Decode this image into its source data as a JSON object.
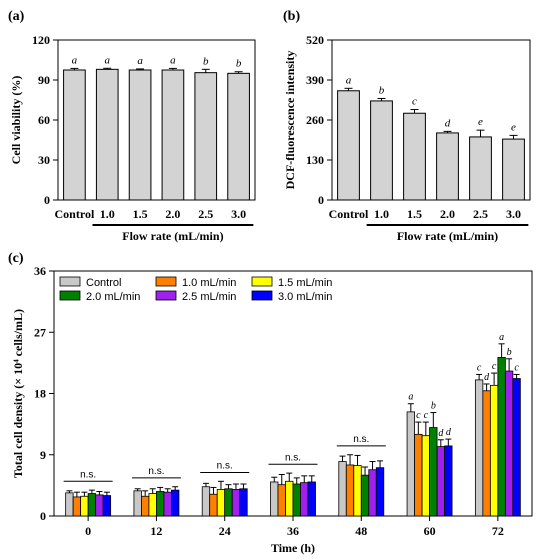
{
  "chart_data": [
    {
      "type": "bar",
      "panel_label": "(a)",
      "ylabel": "Cell viability (%)",
      "xlabel": "Flow rate (mL/min)",
      "categories": [
        "Control",
        "1.0",
        "1.5",
        "2.0",
        "2.5",
        "3.0"
      ],
      "values": [
        97.5,
        98,
        97.5,
        97.5,
        95.5,
        95
      ],
      "errors": [
        1.2,
        0.8,
        0.8,
        1.2,
        2.5,
        1.2
      ],
      "letters": [
        "a",
        "a",
        "a",
        "a",
        "b",
        "b"
      ],
      "ylim": [
        0,
        120
      ],
      "yticks": [
        "0",
        "30",
        "60",
        "90",
        "120"
      ],
      "bar_color": "#d3d3d3"
    },
    {
      "type": "bar",
      "panel_label": "(b)",
      "ylabel": "DCF-fluorescence intensity",
      "xlabel": "Flow rate (mL/min)",
      "categories": [
        "Control",
        "1.0",
        "1.5",
        "2.0",
        "2.5",
        "3.0"
      ],
      "values": [
        355,
        322,
        282,
        218,
        205,
        198
      ],
      "errors": [
        8,
        8,
        12,
        5,
        22,
        12
      ],
      "letters": [
        "a",
        "b",
        "c",
        "d",
        "e",
        "e"
      ],
      "ylim": [
        0,
        520
      ],
      "yticks": [
        "0",
        "130",
        "260",
        "390",
        "520"
      ],
      "bar_color": "#d3d3d3"
    },
    {
      "type": "bar",
      "panel_label": "(c)",
      "ylabel": "Total cell density (× 10⁴ cells/mL)",
      "xlabel": "Time (h)",
      "categories": [
        "0",
        "12",
        "24",
        "36",
        "48",
        "60",
        "72"
      ],
      "ylim": [
        0,
        36
      ],
      "yticks": [
        "0",
        "9",
        "18",
        "27",
        "36"
      ],
      "legend_position": "top-left",
      "series": [
        {
          "name": "Control",
          "color": "#c8c8c8",
          "values": [
            3.4,
            3.7,
            4.3,
            5.0,
            8.0,
            15.3,
            20.0
          ],
          "errors": [
            0.3,
            0.3,
            0.5,
            0.7,
            0.8,
            1.2,
            0.8
          ]
        },
        {
          "name": "1.0 mL/min",
          "color": "#ff8000",
          "values": [
            2.8,
            2.9,
            3.2,
            4.6,
            7.5,
            12.0,
            18.4
          ],
          "errors": [
            0.7,
            0.8,
            1.0,
            1.5,
            1.5,
            1.8,
            1.0
          ]
        },
        {
          "name": "1.5 mL/min",
          "color": "#ffff00",
          "values": [
            2.9,
            3.3,
            3.9,
            5.1,
            7.4,
            11.8,
            19.2
          ],
          "errors": [
            0.6,
            0.7,
            1.2,
            1.2,
            1.5,
            2.0,
            1.8
          ]
        },
        {
          "name": "2.0 mL/min",
          "color": "#008000",
          "values": [
            3.3,
            3.6,
            4.0,
            4.7,
            6.0,
            13.0,
            23.3
          ],
          "errors": [
            0.5,
            0.6,
            0.6,
            0.9,
            1.2,
            2.2,
            2.0
          ]
        },
        {
          "name": "2.5 mL/min",
          "color": "#a020f0",
          "values": [
            3.1,
            3.5,
            3.9,
            4.9,
            6.8,
            10.2,
            21.3
          ],
          "errors": [
            0.5,
            0.5,
            0.8,
            1.0,
            1.2,
            1.0,
            1.8
          ]
        },
        {
          "name": "3.0 mL/min",
          "color": "#0000ff",
          "values": [
            3.0,
            3.8,
            4.0,
            5.0,
            7.1,
            10.3,
            20.2
          ],
          "errors": [
            0.5,
            0.5,
            0.7,
            0.9,
            1.0,
            1.0,
            0.6
          ]
        }
      ],
      "group_annotations": [
        {
          "group": 0,
          "text": "n.s."
        },
        {
          "group": 1,
          "text": "n.s."
        },
        {
          "group": 2,
          "text": "n.s."
        },
        {
          "group": 3,
          "text": "n.s."
        },
        {
          "group": 4,
          "text": "n.s."
        }
      ],
      "bar_letters": [
        {
          "group": 5,
          "letters": [
            "a",
            "c",
            "c",
            "b",
            "d",
            "d"
          ]
        },
        {
          "group": 6,
          "letters": [
            "c",
            "d",
            "c",
            "a",
            "b",
            "c"
          ]
        }
      ]
    }
  ]
}
